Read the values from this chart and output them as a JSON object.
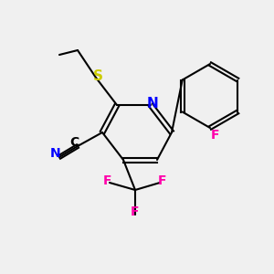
{
  "background_color": "#f0f0f0",
  "bond_color": "#000000",
  "atom_colors": {
    "N": "#0000ff",
    "F": "#ff00aa",
    "S": "#cccc00",
    "C_label": "#000000"
  },
  "figsize": [
    3.0,
    3.0
  ],
  "dpi": 100
}
